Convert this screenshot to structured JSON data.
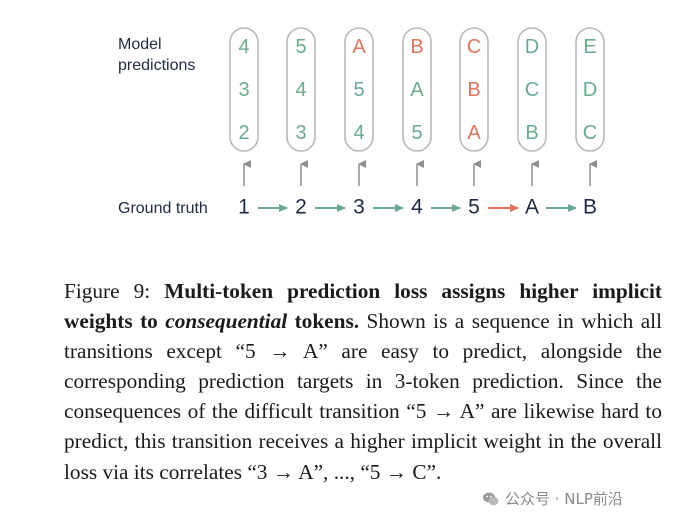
{
  "diagram": {
    "label_predictions": [
      "Model",
      "predictions"
    ],
    "label_ground_truth": "Ground truth",
    "sequence": [
      "1",
      "2",
      "3",
      "4",
      "5",
      "A",
      "B"
    ],
    "columns": [
      {
        "tokens": [
          "4",
          "3",
          "2"
        ],
        "hard": [
          false,
          false,
          false
        ]
      },
      {
        "tokens": [
          "5",
          "4",
          "3"
        ],
        "hard": [
          false,
          false,
          false
        ]
      },
      {
        "tokens": [
          "A",
          "5",
          "4"
        ],
        "hard": [
          true,
          false,
          false
        ]
      },
      {
        "tokens": [
          "B",
          "A",
          "5"
        ],
        "hard": [
          true,
          false,
          false
        ]
      },
      {
        "tokens": [
          "C",
          "B",
          "A"
        ],
        "hard": [
          true,
          true,
          true
        ]
      },
      {
        "tokens": [
          "D",
          "C",
          "B"
        ],
        "hard": [
          false,
          false,
          false
        ]
      },
      {
        "tokens": [
          "E",
          "D",
          "C"
        ],
        "hard": [
          false,
          false,
          false
        ]
      }
    ],
    "transitions": [
      {
        "hard": false
      },
      {
        "hard": false
      },
      {
        "hard": false
      },
      {
        "hard": false
      },
      {
        "hard": true
      },
      {
        "hard": false
      }
    ],
    "colors": {
      "easy": "#6aab8e",
      "hard": "#e0735a",
      "text": "#1f2a44",
      "box": "#b9b9b9",
      "up_arrow": "#8f8f8f"
    }
  },
  "caption": {
    "prefix": "Figure 9: ",
    "bold1": "Multi-token prediction loss assigns higher implicit weights to ",
    "bold_italic": "consequential",
    "bold2": " tokens.",
    "body": " Shown is a sequence in which all transitions except “5 → A” are easy to predict, alongside the corresponding prediction targets in 3-token prediction. Since the consequences of the difficult transition “5 → A” are likewise hard to predict, this transition receives a higher implicit weight in the overall loss via its correlates “3 → A”, ..., “5 → C”."
  },
  "watermark": {
    "text": "公众号 · NLP前沿",
    "icon": "wechat-icon"
  }
}
